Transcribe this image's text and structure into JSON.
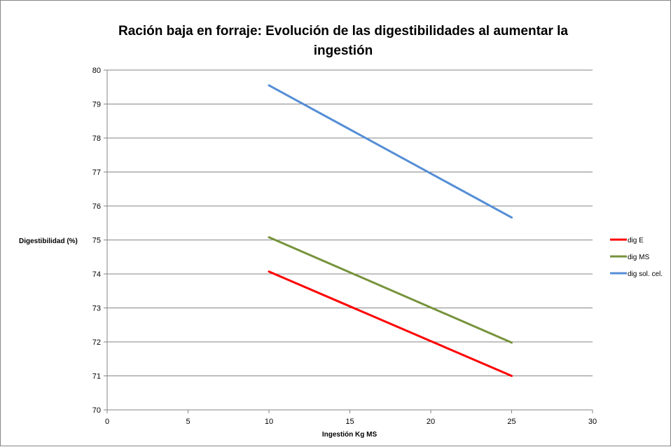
{
  "chart_data": {
    "type": "line",
    "title_lines": [
      "Ración baja en forraje: Evolución de las digestibilidades al aumentar la",
      "ingestión"
    ],
    "xlabel": "Ingestión Kg MS",
    "ylabel": "Digestibilidad (%)",
    "xlim": [
      0,
      30
    ],
    "ylim": [
      70,
      80
    ],
    "x_ticks": [
      "0",
      "5",
      "10",
      "15",
      "20",
      "25",
      "30"
    ],
    "y_ticks": [
      "70",
      "71",
      "72",
      "73",
      "74",
      "75",
      "76",
      "77",
      "78",
      "79",
      "80"
    ],
    "grid": "horizontal",
    "legend_position": "right",
    "series": [
      {
        "name": "dig E",
        "color": "#ff0000",
        "x": [
          10,
          25
        ],
        "y": [
          74.07,
          71.0
        ]
      },
      {
        "name": "dig MS",
        "color": "#77933c",
        "x": [
          10,
          25
        ],
        "y": [
          75.08,
          71.98
        ]
      },
      {
        "name": "dig sol. cel.",
        "color": "#558ed5",
        "x": [
          10,
          25
        ],
        "y": [
          79.55,
          75.66
        ]
      }
    ]
  },
  "colors": {
    "gridline": "#868686",
    "axis": "#868686"
  }
}
